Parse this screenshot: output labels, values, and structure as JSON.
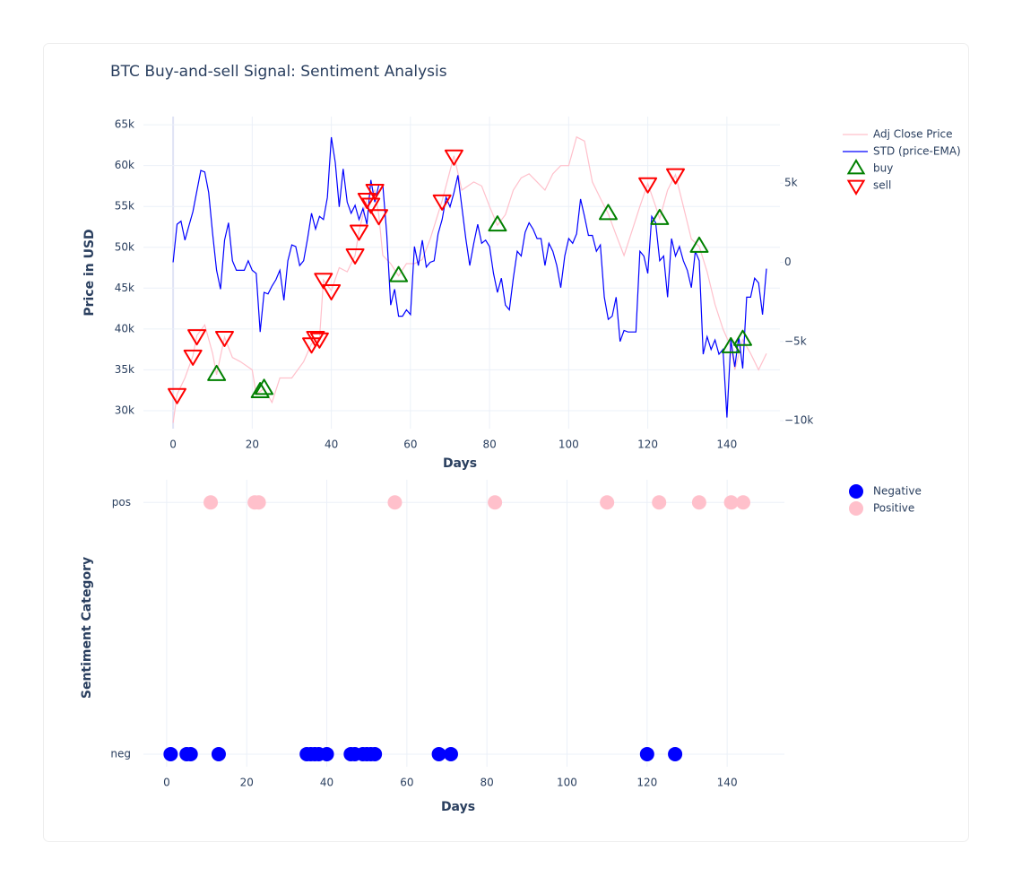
{
  "chart_data": [
    {
      "type": "line",
      "title": "BTC Buy-and-sell Signal: Sentiment Analysis",
      "xlabel": "Days",
      "ylabel": "Price in USD",
      "xlim": [
        -7.5,
        153.4
      ],
      "xticks": [
        0,
        20,
        40,
        60,
        80,
        100,
        120,
        140
      ],
      "ylim": [
        27800,
        66000
      ],
      "yticks": [
        {
          "value": 30000,
          "label": "30k"
        },
        {
          "value": 35000,
          "label": "35k"
        },
        {
          "value": 40000,
          "label": "40k"
        },
        {
          "value": 45000,
          "label": "45k"
        },
        {
          "value": 50000,
          "label": "50k"
        },
        {
          "value": 55000,
          "label": "55k"
        },
        {
          "value": 60000,
          "label": "60k"
        },
        {
          "value": 65000,
          "label": "65k"
        }
      ],
      "y2lim": [
        -10500,
        9200
      ],
      "y2ticks": [
        {
          "value": -10000,
          "label": "−10k"
        },
        {
          "value": -5000,
          "label": "−5k"
        },
        0,
        {
          "value": 5000,
          "label": "5k"
        }
      ],
      "grid": true,
      "series": [
        {
          "name": "Adj Close Price",
          "color": "pink",
          "mode": "lines",
          "x": [
            0,
            1,
            3,
            5,
            6,
            8,
            10,
            11,
            13,
            15,
            17,
            20,
            21,
            23,
            25,
            27,
            30,
            33,
            35,
            37,
            38,
            40,
            42,
            44,
            46,
            47,
            49,
            51,
            52,
            53,
            55,
            57,
            59,
            61,
            63,
            65,
            68,
            71,
            73,
            76,
            78,
            80,
            82,
            84,
            86,
            88,
            90,
            92,
            94,
            96,
            98,
            100,
            102,
            104,
            106,
            108,
            110,
            112,
            114,
            116,
            118,
            120,
            122,
            123,
            125,
            127,
            129,
            131,
            133,
            135,
            137,
            139,
            141,
            142,
            144,
            146,
            148,
            150
          ],
          "values": [
            28500,
            32000,
            34000,
            36700,
            39200,
            40500,
            37000,
            34400,
            39000,
            36500,
            36000,
            35000,
            32000,
            32700,
            31000,
            34000,
            34000,
            36000,
            38200,
            38800,
            46000,
            44700,
            47500,
            47000,
            49000,
            52000,
            55900,
            57000,
            53900,
            49000,
            48000,
            46500,
            48000,
            48000,
            48500,
            51000,
            55700,
            61200,
            57000,
            58000,
            57500,
            55000,
            52700,
            54000,
            57000,
            58500,
            59000,
            58000,
            57000,
            59000,
            60000,
            60000,
            63500,
            63000,
            58000,
            56000,
            54100,
            51500,
            49000,
            52000,
            55000,
            57800,
            55000,
            53500,
            57000,
            58900,
            55000,
            51000,
            50100,
            47000,
            43000,
            40000,
            37800,
            35000,
            38700,
            37000,
            35000,
            37000
          ]
        },
        {
          "name": "STD (price-EMA)",
          "color": "blue",
          "mode": "lines",
          "axis": "y2",
          "x": [
            0,
            1,
            2,
            3,
            4,
            5,
            6,
            7,
            8,
            9,
            10,
            11,
            12,
            13,
            14,
            15,
            16,
            17,
            18,
            19,
            20,
            21,
            22,
            23,
            24,
            25,
            26,
            27,
            28,
            29,
            30,
            31,
            32,
            33,
            34,
            35,
            36,
            37,
            38,
            39,
            40,
            41,
            42,
            43,
            44,
            45,
            46,
            47,
            48,
            49,
            50,
            51,
            52,
            53,
            54,
            55,
            56,
            57,
            58,
            59,
            60,
            61,
            62,
            63,
            64,
            65,
            66,
            67,
            68,
            69,
            70,
            71,
            72,
            73,
            74,
            75,
            76,
            77,
            78,
            79,
            80,
            81,
            82,
            83,
            84,
            85,
            86,
            87,
            88,
            89,
            90,
            91,
            92,
            93,
            94,
            95,
            96,
            97,
            98,
            99,
            100,
            101,
            102,
            103,
            104,
            105,
            106,
            107,
            108,
            109,
            110,
            111,
            112,
            113,
            114,
            115,
            116,
            117,
            118,
            119,
            120,
            121,
            122,
            123,
            124,
            125,
            126,
            127,
            128,
            129,
            130,
            131,
            132,
            133,
            134,
            135,
            136,
            137,
            138,
            139,
            140,
            141,
            142,
            143,
            144,
            145,
            146,
            147,
            148,
            149,
            150
          ],
          "values": [
            0,
            2400,
            2600,
            1400,
            2300,
            3200,
            4500,
            5800,
            5700,
            4400,
            1800,
            -500,
            -1700,
            1400,
            2500,
            100,
            -500,
            -500,
            -500,
            100,
            -500,
            -700,
            -4400,
            -1900,
            -2000,
            -1500,
            -1100,
            -500,
            -2400,
            100,
            1100,
            1000,
            -200,
            100,
            1500,
            3100,
            2100,
            2900,
            2700,
            4100,
            7900,
            6300,
            3500,
            5900,
            3800,
            3100,
            3600,
            2700,
            3400,
            2400,
            5200,
            3800,
            4900,
            4900,
            1800,
            -2700,
            -1700,
            -3400,
            -3400,
            -3000,
            -3300,
            1000,
            -200,
            1400,
            -300,
            0,
            100,
            1800,
            2700,
            4100,
            3500,
            4400,
            5500,
            3500,
            1500,
            -200,
            1200,
            2400,
            1200,
            1400,
            1000,
            -700,
            -1900,
            -1000,
            -2700,
            -3000,
            -1000,
            700,
            400,
            1900,
            2500,
            2100,
            1500,
            1500,
            -200,
            1200,
            700,
            -200,
            -1600,
            400,
            1500,
            1200,
            1800,
            4000,
            2900,
            1700,
            1700,
            700,
            1100,
            -2200,
            -3600,
            -3400,
            -2200,
            -5000,
            -4300,
            -4400,
            -4400,
            -4400,
            700,
            400,
            -700,
            2900,
            2500,
            100,
            400,
            -2200,
            1500,
            400,
            1000,
            100,
            -500,
            -1600,
            700,
            100,
            -5800,
            -4700,
            -5500,
            -4900,
            -5800,
            -5500,
            -9800,
            -4900,
            -6600,
            -4700,
            -6700,
            -2200,
            -2200,
            -1000,
            -1300,
            -3300,
            -400
          ]
        },
        {
          "name": "buy",
          "color": "green",
          "mode": "markers",
          "marker": "triangle-up",
          "x": [
            11,
            22,
            23,
            57,
            82,
            110,
            123,
            133,
            141,
            144
          ],
          "values": [
            34400,
            32300,
            32700,
            46500,
            52700,
            54100,
            53500,
            50100,
            37800,
            38700
          ]
        },
        {
          "name": "sell",
          "color": "red",
          "mode": "markers",
          "marker": "triangle-down",
          "x": [
            1,
            5,
            6,
            13,
            35,
            36,
            37,
            38,
            40,
            46,
            47,
            49,
            50,
            51,
            52,
            68,
            71,
            120,
            127
          ],
          "values": [
            32000,
            36700,
            39200,
            39000,
            38200,
            39000,
            38800,
            46100,
            44700,
            49100,
            52000,
            55900,
            55300,
            57000,
            53900,
            55700,
            61200,
            57800,
            58900
          ]
        }
      ]
    },
    {
      "type": "scatter",
      "xlabel": "Days",
      "ylabel": "Sentiment Category",
      "xlim": [
        -5.8,
        154.3
      ],
      "xticks": [
        0,
        20,
        40,
        60,
        80,
        100,
        120,
        140
      ],
      "y_categories": [
        "neg",
        "pos"
      ],
      "ylim": [
        -0.05,
        1.09
      ],
      "grid": true,
      "series": [
        {
          "name": "Negative",
          "color": "blue",
          "mode": "markers",
          "marker": "circle",
          "x": [
            1,
            5,
            6,
            13,
            35,
            36,
            37,
            38,
            40,
            46,
            47,
            49,
            50,
            51,
            52,
            68,
            71,
            120,
            127
          ],
          "values": [
            "neg",
            "neg",
            "neg",
            "neg",
            "neg",
            "neg",
            "neg",
            "neg",
            "neg",
            "neg",
            "neg",
            "neg",
            "neg",
            "neg",
            "neg",
            "neg",
            "neg",
            "neg",
            "neg"
          ]
        },
        {
          "name": "Positive",
          "color": "pink",
          "mode": "markers",
          "marker": "circle",
          "x": [
            11,
            22,
            23,
            57,
            82,
            110,
            123,
            133,
            141,
            144
          ],
          "values": [
            "pos",
            "pos",
            "pos",
            "pos",
            "pos",
            "pos",
            "pos",
            "pos",
            "pos",
            "pos"
          ]
        }
      ]
    }
  ]
}
